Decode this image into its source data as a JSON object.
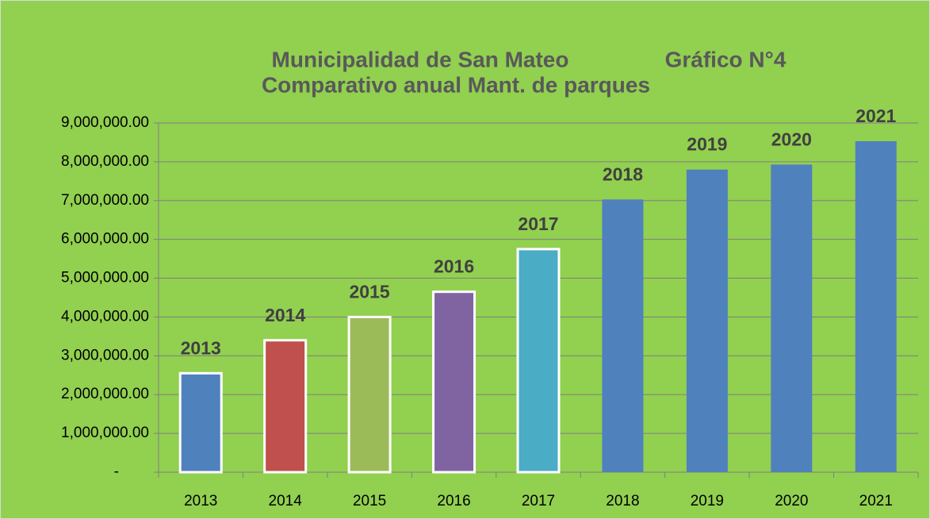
{
  "chart_data": {
    "type": "bar",
    "title": [
      "Municipalidad de San Mateo",
      "Gráfico N°4",
      "Comparativo anual Mant. de parques"
    ],
    "categories": [
      "2013",
      "2014",
      "2015",
      "2016",
      "2017",
      "2018",
      "2019",
      "2020",
      "2021"
    ],
    "values": [
      2550000,
      3400000,
      4000000,
      4650000,
      5750000,
      7030000,
      7800000,
      7930000,
      8530000
    ],
    "colors": [
      "#4f81bd",
      "#c0504d",
      "#9bbb59",
      "#8064a2",
      "#4bacc6",
      "#4f81bd",
      "#4f81bd",
      "#4f81bd",
      "#4f81bd"
    ],
    "edgecolors": [
      "#ffffff",
      "#ffffff",
      "#ffffff",
      "#ffffff",
      "#ffffff",
      "none",
      "none",
      "none",
      "none"
    ],
    "ylim": [
      0,
      9000000
    ],
    "yticks": [
      {
        "value": 0,
        "label": "-"
      },
      {
        "value": 1000000,
        "label": "1,000,000.00"
      },
      {
        "value": 2000000,
        "label": "2,000,000.00"
      },
      {
        "value": 3000000,
        "label": "3,000,000.00"
      },
      {
        "value": 4000000,
        "label": "4,000,000.00"
      },
      {
        "value": 5000000,
        "label": "5,000,000.00"
      },
      {
        "value": 6000000,
        "label": "6,000,000.00"
      },
      {
        "value": 7000000,
        "label": "7,000,000.00"
      },
      {
        "value": 8000000,
        "label": "8,000,000.00"
      },
      {
        "value": 9000000,
        "label": "9,000,000.00"
      }
    ],
    "grid": true,
    "background": "#92d050"
  }
}
